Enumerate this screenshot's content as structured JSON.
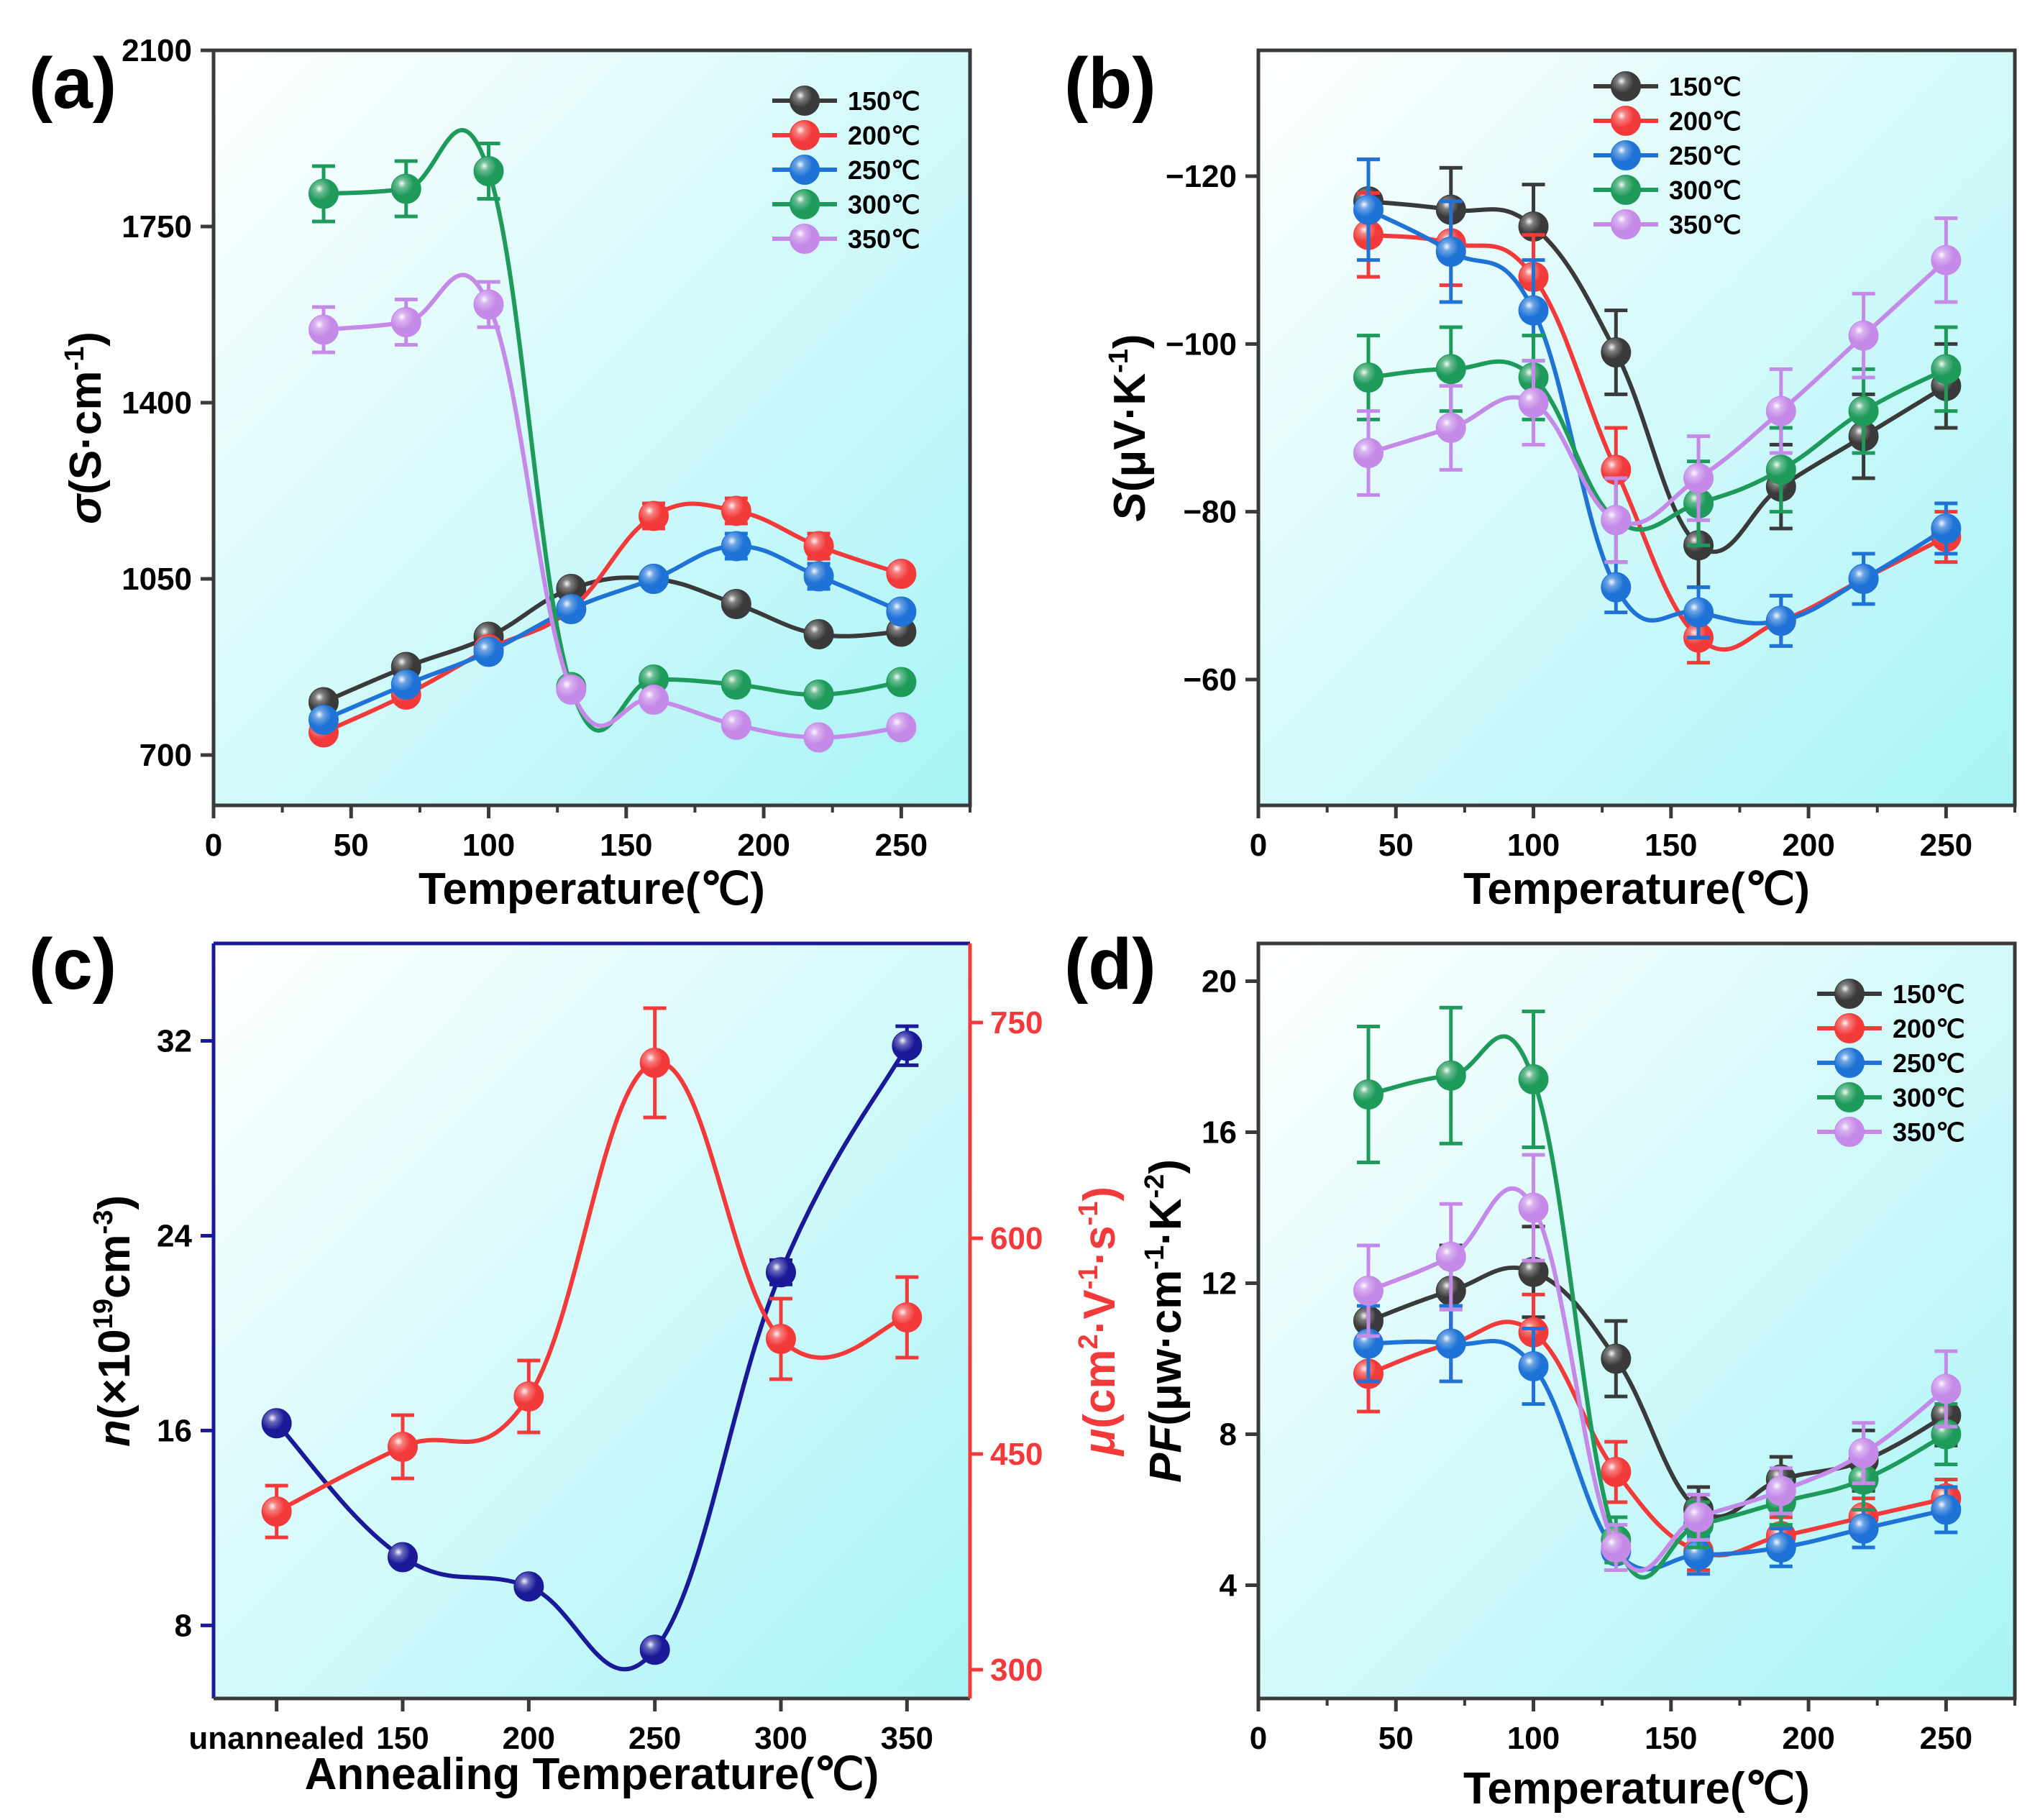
{
  "figure": {
    "panel_labels": [
      "(a)",
      "(b)",
      "(c)",
      "(d)"
    ]
  },
  "chart_data": [
    {
      "panel": "(a)",
      "type": "line",
      "xlabel": "Temperature(℃)",
      "ylabel_sym": "σ",
      "ylabel_unit": "(S·cm",
      "ylabel_sup": "-1",
      "ylabel_close": ")",
      "xlim": [
        0,
        275
      ],
      "ylim": [
        600,
        2100
      ],
      "xticks": [
        0,
        50,
        100,
        150,
        200,
        250
      ],
      "yticks": [
        700,
        1050,
        1400,
        1750,
        2100
      ],
      "x": [
        40,
        70,
        100,
        130,
        160,
        190,
        220,
        250
      ],
      "legend": {
        "placement": "top-right"
      },
      "series": [
        {
          "name": "150℃",
          "color": "#3a3a3a",
          "values": [
            805,
            875,
            935,
            1030,
            1050,
            1000,
            940,
            945
          ],
          "err": [
            10,
            10,
            10,
            10,
            10,
            10,
            10,
            10
          ]
        },
        {
          "name": "200℃",
          "color": "#f23a3a",
          "values": [
            745,
            820,
            910,
            990,
            1175,
            1185,
            1115,
            1060
          ],
          "err": [
            10,
            10,
            10,
            10,
            25,
            25,
            25,
            10
          ]
        },
        {
          "name": "250℃",
          "color": "#1f73d6",
          "values": [
            770,
            840,
            905,
            990,
            1050,
            1115,
            1055,
            985
          ],
          "err": [
            10,
            10,
            10,
            10,
            10,
            25,
            25,
            10
          ]
        },
        {
          "name": "300℃",
          "color": "#1e9a5a",
          "values": [
            1815,
            1825,
            1860,
            835,
            850,
            840,
            820,
            845
          ],
          "err": [
            55,
            55,
            55,
            10,
            10,
            10,
            10,
            10
          ]
        },
        {
          "name": "350℃",
          "color": "#c58ae8",
          "values": [
            1545,
            1560,
            1595,
            830,
            810,
            760,
            735,
            755
          ],
          "err": [
            45,
            45,
            45,
            10,
            10,
            10,
            10,
            10
          ]
        }
      ]
    },
    {
      "panel": "(b)",
      "type": "line",
      "xlabel": "Temperature(℃)",
      "ylabel_sym": "S",
      "ylabel_unit": "(μV·K",
      "ylabel_sup": "-1",
      "ylabel_close": ")",
      "xlim": [
        0,
        275
      ],
      "ylim": [
        -45,
        -135
      ],
      "xticks": [
        0,
        50,
        100,
        150,
        200,
        250
      ],
      "yticks": [
        -60,
        -80,
        -100,
        -120
      ],
      "ytick_labels": [
        "−60",
        "−80",
        "−100",
        "−120"
      ],
      "x": [
        40,
        70,
        100,
        130,
        160,
        190,
        220,
        250
      ],
      "legend": {
        "placement": "top-center"
      },
      "series": [
        {
          "name": "150℃",
          "color": "#3a3a3a",
          "values": [
            -117,
            -116,
            -114,
            -99,
            -76,
            -83,
            -89,
            -95
          ],
          "err": [
            5,
            5,
            5,
            5,
            5,
            5,
            5,
            5
          ]
        },
        {
          "name": "200℃",
          "color": "#f23a3a",
          "values": [
            -113,
            -112,
            -108,
            -85,
            -65,
            -67,
            -72,
            -77
          ],
          "err": [
            5,
            5,
            5,
            5,
            3,
            3,
            3,
            3
          ]
        },
        {
          "name": "250℃",
          "color": "#1f73d6",
          "values": [
            -116,
            -111,
            -104,
            -71,
            -68,
            -67,
            -72,
            -78
          ],
          "err": [
            6,
            6,
            6,
            3,
            3,
            3,
            3,
            3
          ]
        },
        {
          "name": "300℃",
          "color": "#1e9a5a",
          "values": [
            -96,
            -97,
            -96,
            -79,
            -81,
            -85,
            -92,
            -97
          ],
          "err": [
            5,
            5,
            5,
            5,
            5,
            5,
            5,
            5
          ]
        },
        {
          "name": "350℃",
          "color": "#c58ae8",
          "values": [
            -87,
            -90,
            -93,
            -79,
            -84,
            -92,
            -101,
            -110
          ],
          "err": [
            5,
            5,
            5,
            5,
            5,
            5,
            5,
            5
          ]
        }
      ]
    },
    {
      "panel": "(c)",
      "type": "line",
      "xlabel": "Annealing Temperature(℃)",
      "categories": [
        "unannealed",
        "150",
        "200",
        "250",
        "300",
        "350"
      ],
      "xlim": [
        -0.5,
        5.5
      ],
      "left_axis": {
        "label_sym": "n",
        "label_a": "(×10",
        "label_sup1": "19",
        "label_b": "cm",
        "label_sup2": "-3",
        "label_c": ")",
        "ylim": [
          5,
          36
        ],
        "yticks": [
          8,
          16,
          24,
          32
        ],
        "color": "#1a1a99"
      },
      "right_axis": {
        "label_sym": "μ",
        "label_a": "(cm",
        "label_sup1": "2",
        "label_b": "·V",
        "label_sup2": "-1",
        "label_c": "·s",
        "label_sup3": "-1",
        "label_d": ")",
        "ylim": [
          280,
          805
        ],
        "yticks": [
          300,
          450,
          600,
          750
        ],
        "color": "#f23a3a"
      },
      "series": [
        {
          "name": "n",
          "axis": "left",
          "color": "#1a1a99",
          "values": [
            16.3,
            10.8,
            9.6,
            7.0,
            22.5,
            31.8
          ],
          "err": [
            0.3,
            0.3,
            0.3,
            0.3,
            0.5,
            0.8
          ]
        },
        {
          "name": "μ",
          "axis": "right",
          "color": "#f23a3a",
          "values": [
            410,
            455,
            490,
            722,
            530,
            545
          ],
          "err": [
            18,
            22,
            25,
            38,
            28,
            28
          ]
        }
      ]
    },
    {
      "panel": "(d)",
      "type": "line",
      "xlabel": "Temperature(℃)",
      "ylabel_sym": "PF",
      "ylabel_a": "(μw·cm",
      "ylabel_sup1": "-1",
      "ylabel_b": "·K",
      "ylabel_sup2": "-2",
      "ylabel_c": ")",
      "xlim": [
        0,
        275
      ],
      "ylim": [
        1,
        21
      ],
      "xticks": [
        0,
        50,
        100,
        150,
        200,
        250
      ],
      "yticks": [
        4,
        8,
        12,
        16,
        20
      ],
      "x": [
        40,
        70,
        100,
        130,
        160,
        190,
        220,
        250
      ],
      "legend": {
        "placement": "top-right"
      },
      "series": [
        {
          "name": "150℃",
          "color": "#3a3a3a",
          "values": [
            11.0,
            11.8,
            12.3,
            10.0,
            6.0,
            6.8,
            7.3,
            8.5
          ],
          "err": [
            0.8,
            1.2,
            1.2,
            1.0,
            0.6,
            0.6,
            0.8,
            0.8
          ]
        },
        {
          "name": "200℃",
          "color": "#f23a3a",
          "values": [
            9.6,
            10.4,
            10.7,
            7.0,
            4.9,
            5.3,
            5.8,
            6.3
          ],
          "err": [
            1.0,
            1.0,
            1.0,
            0.8,
            0.5,
            0.5,
            0.5,
            0.5
          ]
        },
        {
          "name": "250℃",
          "color": "#1f73d6",
          "values": [
            10.4,
            10.4,
            9.8,
            4.9,
            4.8,
            5.0,
            5.5,
            6.0
          ],
          "err": [
            1.0,
            1.0,
            1.0,
            0.5,
            0.5,
            0.5,
            0.5,
            0.6
          ]
        },
        {
          "name": "300℃",
          "color": "#1e9a5a",
          "values": [
            17.0,
            17.5,
            17.4,
            5.2,
            5.6,
            6.2,
            6.8,
            8.0
          ],
          "err": [
            1.8,
            1.8,
            1.8,
            0.6,
            0.6,
            0.6,
            0.8,
            0.8
          ]
        },
        {
          "name": "350℃",
          "color": "#c58ae8",
          "values": [
            11.8,
            12.7,
            14.0,
            5.0,
            5.8,
            6.5,
            7.5,
            9.2
          ],
          "err": [
            1.2,
            1.4,
            1.4,
            0.6,
            0.6,
            0.6,
            0.8,
            1.0
          ]
        }
      ]
    }
  ]
}
